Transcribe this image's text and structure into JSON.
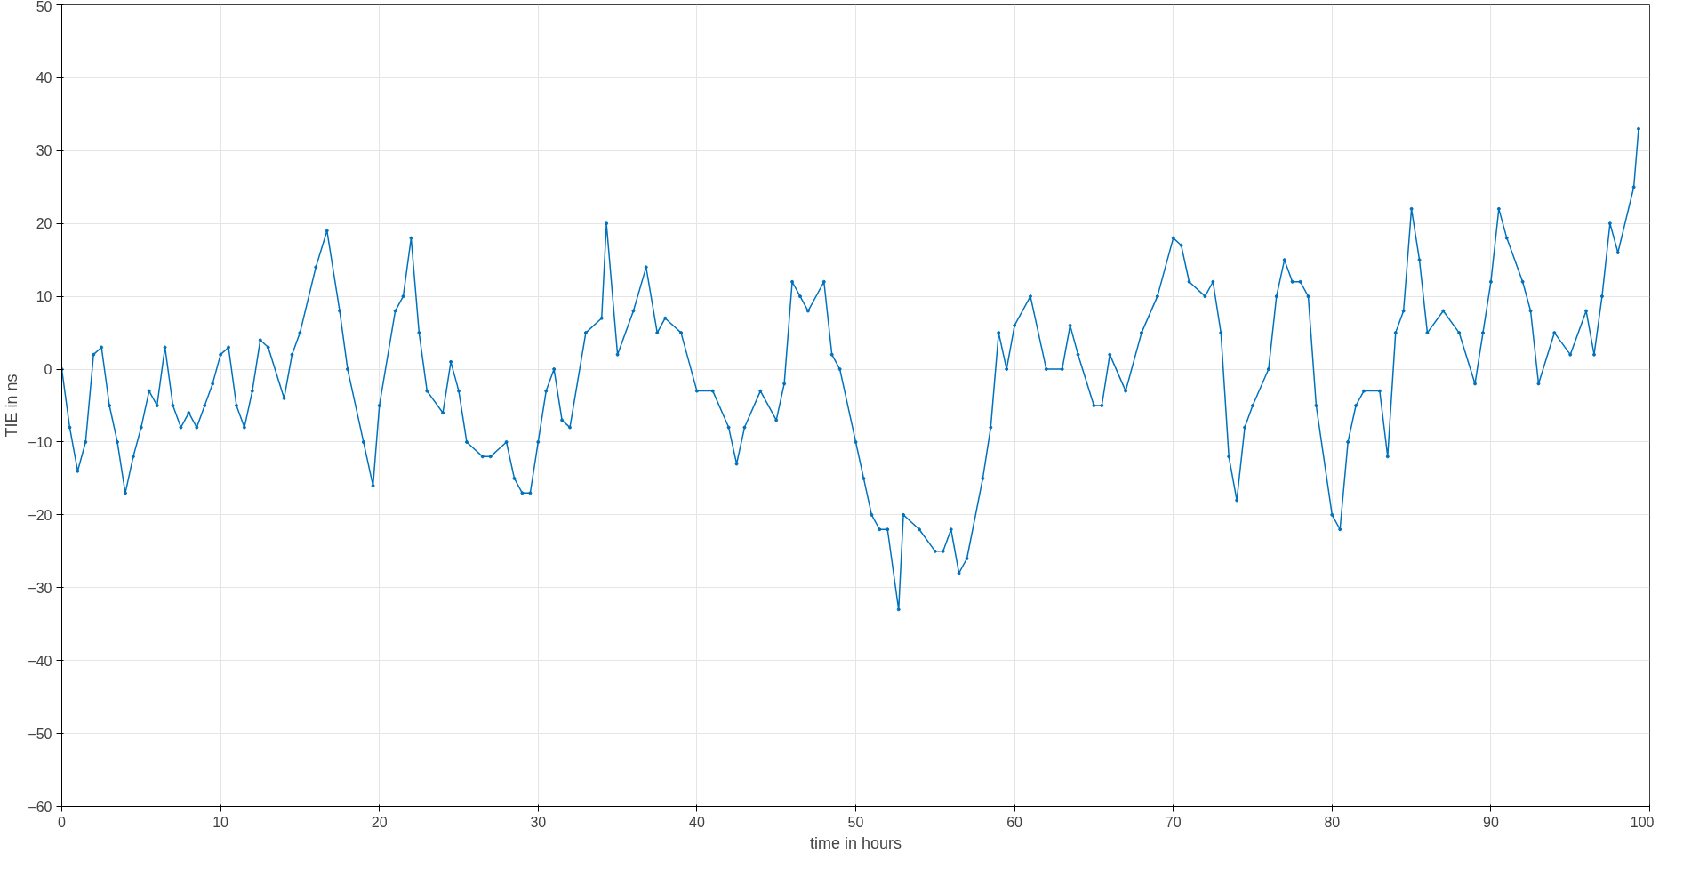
{
  "chart_data": {
    "type": "line",
    "xlabel": "time in hours",
    "ylabel": "TIE in ns",
    "x": [
      0,
      0.5,
      1,
      1.5,
      2,
      2.5,
      3,
      3.5,
      4,
      4.5,
      5,
      5.5,
      6,
      6.5,
      7,
      7.5,
      8,
      8.5,
      9,
      9.5,
      10,
      10.5,
      11,
      11.5,
      12,
      12.5,
      13,
      14,
      14.5,
      15,
      16,
      16.7,
      17.5,
      18,
      19,
      19.6,
      20,
      21,
      21.5,
      22,
      22.5,
      23,
      24,
      24.5,
      25,
      25.5,
      26.5,
      27,
      28,
      28.5,
      29,
      29.5,
      30,
      30.5,
      31,
      31.5,
      32,
      33,
      34,
      34.3,
      35,
      36,
      36.8,
      37.5,
      38,
      39,
      40,
      41,
      42,
      42.5,
      43,
      44,
      45,
      45.5,
      46,
      46.5,
      47,
      48,
      48.5,
      49,
      50,
      50.5,
      51,
      51.5,
      52,
      52.7,
      53,
      54,
      55,
      55.5,
      56,
      56.5,
      57,
      58,
      58.5,
      59,
      59.5,
      60,
      61,
      62,
      63,
      63.5,
      64,
      65,
      65.5,
      66,
      67,
      68,
      69,
      70,
      70.5,
      71,
      72,
      72.5,
      73,
      73.5,
      74,
      74.5,
      75,
      76,
      76.5,
      77,
      77.5,
      78,
      78.5,
      79,
      80,
      80.5,
      81,
      81.5,
      82,
      83,
      83.5,
      84,
      84.5,
      85,
      85.5,
      86,
      87,
      88,
      89,
      89.5,
      90,
      90.5,
      91,
      92,
      92.5,
      93,
      94,
      95,
      96,
      96.5,
      97,
      97.5,
      98,
      99,
      99.3
    ],
    "series": [
      {
        "color": "#0072bd",
        "values": [
          0,
          -8,
          -14,
          -10,
          2,
          3,
          -5,
          -10,
          -17,
          -12,
          -8,
          -3,
          -5,
          3,
          -5,
          -8,
          -6,
          -8,
          -5,
          -2,
          2,
          3,
          -5,
          -8,
          -3,
          4,
          3,
          -4,
          2,
          5,
          14,
          19,
          8,
          0,
          -10,
          -16,
          -5,
          8,
          10,
          18,
          5,
          -3,
          -6,
          1,
          -3,
          -10,
          -12,
          -12,
          -10,
          -15,
          -17,
          -17,
          -10,
          -3,
          0,
          -7,
          -8,
          5,
          7,
          20,
          2,
          8,
          14,
          5,
          7,
          5,
          -3,
          -3,
          -8,
          -13,
          -8,
          -3,
          -7,
          -2,
          12,
          10,
          8,
          12,
          2,
          0,
          -10,
          -15,
          -20,
          -22,
          -22,
          -33,
          -20,
          -22,
          -25,
          -25,
          -22,
          -28,
          -26,
          -15,
          -8,
          5,
          0,
          6,
          10,
          0,
          0,
          6,
          2,
          -5,
          -5,
          2,
          -3,
          5,
          10,
          18,
          17,
          12,
          10,
          12,
          5,
          -12,
          -18,
          -8,
          -5,
          0,
          10,
          15,
          12,
          12,
          10,
          -5,
          -20,
          -22,
          -10,
          -5,
          -3,
          -3,
          -12,
          5,
          8,
          22,
          15,
          5,
          8,
          5,
          -2,
          5,
          12,
          22,
          18,
          12,
          8,
          -2,
          5,
          2,
          8,
          2,
          10,
          20,
          16,
          25,
          33
        ]
      }
    ],
    "xlim": [
      0,
      100
    ],
    "ylim": [
      -60,
      50
    ],
    "xticks": [
      0,
      10,
      20,
      30,
      40,
      50,
      60,
      70,
      80,
      90,
      100
    ],
    "yticks": [
      -60,
      -50,
      -40,
      -30,
      -20,
      -10,
      0,
      10,
      20,
      30,
      40,
      50
    ],
    "grid": true,
    "marker": "circle",
    "line_style": "solid"
  }
}
